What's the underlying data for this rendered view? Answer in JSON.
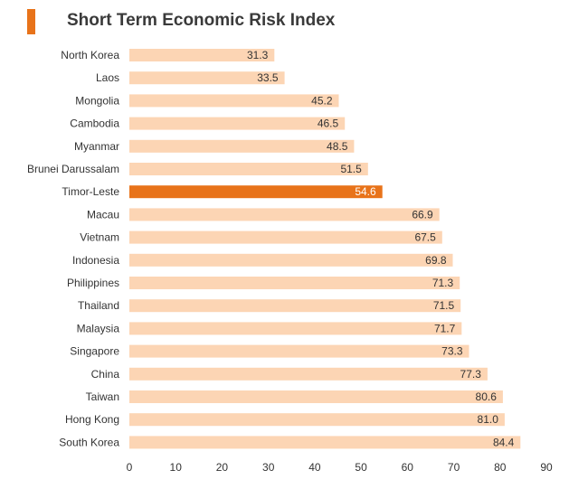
{
  "chart_data": {
    "type": "bar",
    "orientation": "horizontal",
    "title": "Short Term Economic Risk Index",
    "categories": [
      "North Korea",
      "Laos",
      "Mongolia",
      "Cambodia",
      "Myanmar",
      "Brunei Darussalam",
      "Timor-Leste",
      "Macau",
      "Vietnam",
      "Indonesia",
      "Philippines",
      "Thailand",
      "Malaysia",
      "Singapore",
      "China",
      "Taiwan",
      "Hong Kong",
      "South Korea"
    ],
    "values": [
      31.3,
      33.5,
      45.2,
      46.5,
      48.5,
      51.5,
      54.6,
      66.9,
      67.5,
      69.8,
      71.3,
      71.5,
      71.7,
      73.3,
      77.3,
      80.6,
      81.0,
      84.4
    ],
    "value_labels": [
      "31.3",
      "33.5",
      "45.2",
      "46.5",
      "48.5",
      "51.5",
      "54.6",
      "66.9",
      "67.5",
      "69.8",
      "71.3",
      "71.5",
      "71.7",
      "73.3",
      "77.3",
      "80.6",
      "81.0",
      "84.4"
    ],
    "highlight": "Timor-Leste",
    "xlim": [
      0,
      90
    ],
    "xticks": [
      0,
      10,
      20,
      30,
      40,
      50,
      60,
      70,
      80,
      90
    ],
    "grid": false,
    "legend": "none",
    "colors": {
      "bar": "#fcd5b4",
      "highlight": "#e8731a",
      "accent": "#e8731a"
    }
  }
}
